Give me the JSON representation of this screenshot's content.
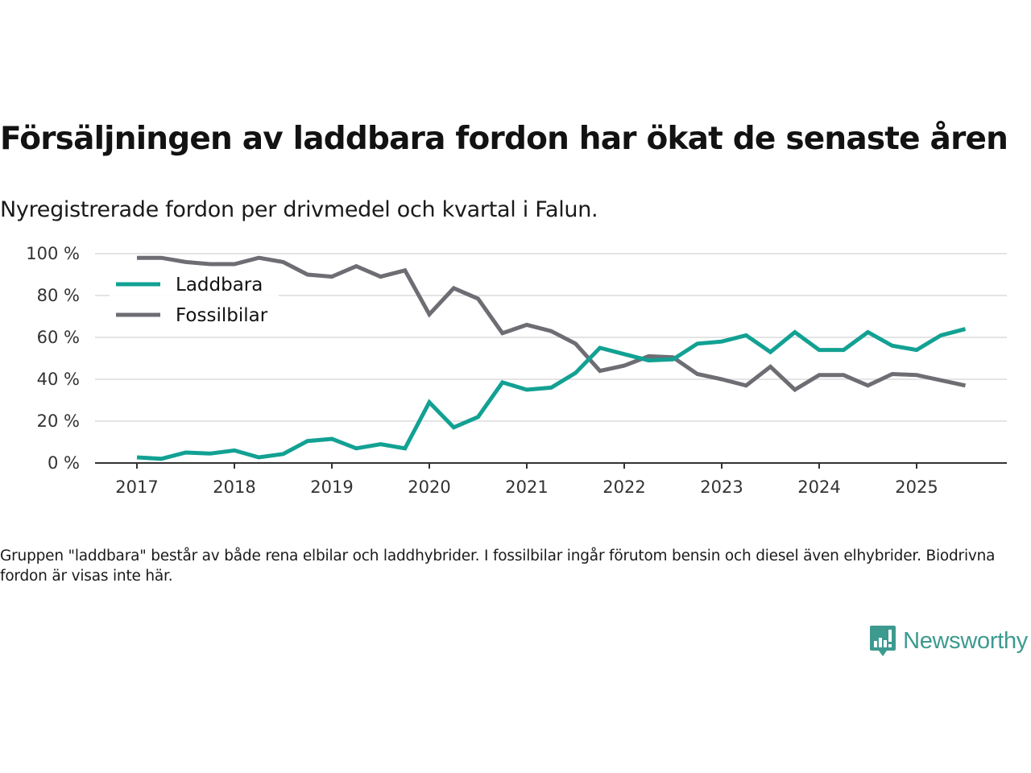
{
  "header": {
    "title": "Försäljningen av laddbara fordon har ökat de senaste åren",
    "subtitle": "Nyregistrerade fordon per drivmedel och kvartal i Falun."
  },
  "footer": {
    "note": "Gruppen \"laddbara\" består av både rena elbilar och laddhybrider. I fossilbilar ingår förutom bensin och diesel även elhybrider. Biodrivna fordon är visas inte här.",
    "brand": "Newsworthy",
    "brand_icon": "bar-chart-speech-bubble-icon",
    "brand_color": "#3d9a8f"
  },
  "chart_data": {
    "type": "line",
    "title": "Försäljningen av laddbara fordon har ökat de senaste åren",
    "subtitle": "Nyregistrerade fordon per drivmedel och kvartal i Falun.",
    "xlabel": "",
    "ylabel": "",
    "x": [
      "2017Q1",
      "2017Q2",
      "2017Q3",
      "2017Q4",
      "2018Q1",
      "2018Q2",
      "2018Q3",
      "2018Q4",
      "2019Q1",
      "2019Q2",
      "2019Q3",
      "2019Q4",
      "2020Q1",
      "2020Q2",
      "2020Q3",
      "2020Q4",
      "2021Q1",
      "2021Q2",
      "2021Q3",
      "2021Q4",
      "2022Q1",
      "2022Q2",
      "2022Q3",
      "2022Q4",
      "2023Q1",
      "2023Q2",
      "2023Q3",
      "2023Q4",
      "2024Q1",
      "2024Q2",
      "2024Q3",
      "2024Q4",
      "2025Q1",
      "2025Q2",
      "2025Q3"
    ],
    "x_ticks": [
      "2017",
      "2018",
      "2019",
      "2020",
      "2021",
      "2022",
      "2023",
      "2024",
      "2025"
    ],
    "y_ticks": [
      0,
      20,
      40,
      60,
      80,
      100
    ],
    "y_tick_labels": [
      "0 %",
      "20 %",
      "40 %",
      "60 %",
      "80 %",
      "100 %"
    ],
    "ylim": [
      0,
      100
    ],
    "grid": true,
    "legend_position": "top-left",
    "series": [
      {
        "name": "Laddbara",
        "color": "#12a193",
        "values": [
          2.7,
          2,
          5,
          4.5,
          6,
          2.7,
          4.3,
          10.5,
          11.5,
          7,
          9,
          7,
          29,
          17,
          22,
          38.5,
          35,
          36,
          43,
          55,
          52,
          49,
          49.5,
          57,
          58,
          61,
          53,
          62.5,
          54,
          54,
          62.5,
          56,
          54,
          61,
          64
        ]
      },
      {
        "name": "Fossilbilar",
        "color": "#6e6d73",
        "values": [
          98,
          98,
          96,
          95,
          95,
          98,
          96,
          90,
          89,
          94,
          89,
          92,
          71,
          83.5,
          78.5,
          62,
          66,
          63,
          57,
          44,
          46.5,
          51,
          50.5,
          42.5,
          40,
          37,
          46,
          35,
          42,
          42,
          37,
          42.5,
          42,
          39.5,
          37
        ]
      }
    ]
  }
}
